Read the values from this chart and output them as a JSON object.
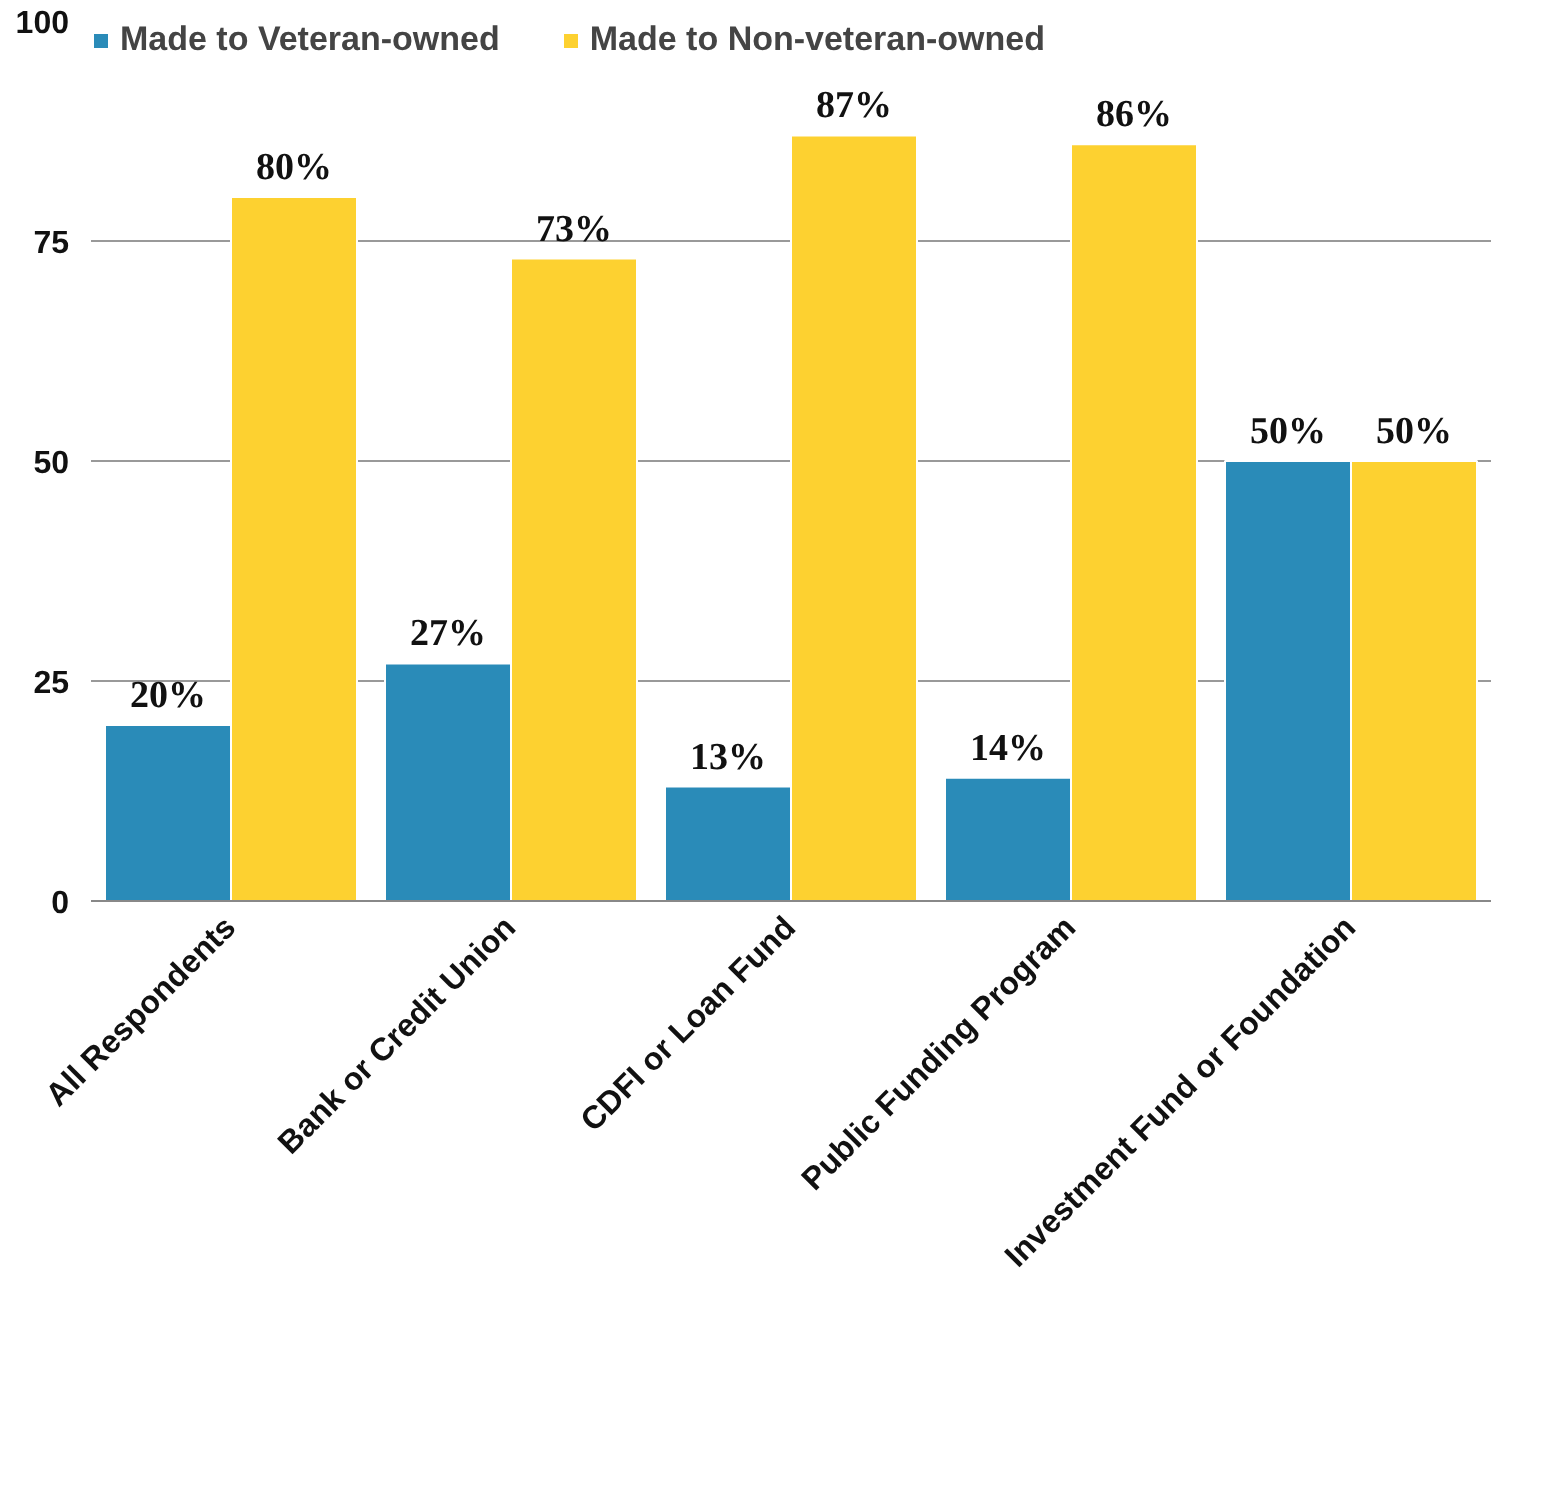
{
  "chart_data": {
    "type": "bar",
    "categories": [
      "All Respondents",
      "Bank or Credit Union",
      "CDFI or Loan Fund",
      "Public Funding Program",
      "Investment Fund or Foundation"
    ],
    "series": [
      {
        "name": "Made to Veteran-owned",
        "color": "#2a8bb8",
        "values": [
          20,
          27,
          13,
          14,
          50
        ],
        "value_labels": [
          "20%",
          "27%",
          "13%",
          "14%",
          "50%"
        ]
      },
      {
        "name": "Made to Non-veteran-owned",
        "color": "#fdd130",
        "values": [
          80,
          73,
          87,
          86,
          50
        ],
        "value_labels": [
          "80%",
          "73%",
          "87%",
          "86%",
          "50%"
        ]
      }
    ],
    "ylim": [
      0,
      100
    ],
    "yticks": [
      0,
      25,
      50,
      75,
      100
    ],
    "grid": "y",
    "legend": "top"
  }
}
